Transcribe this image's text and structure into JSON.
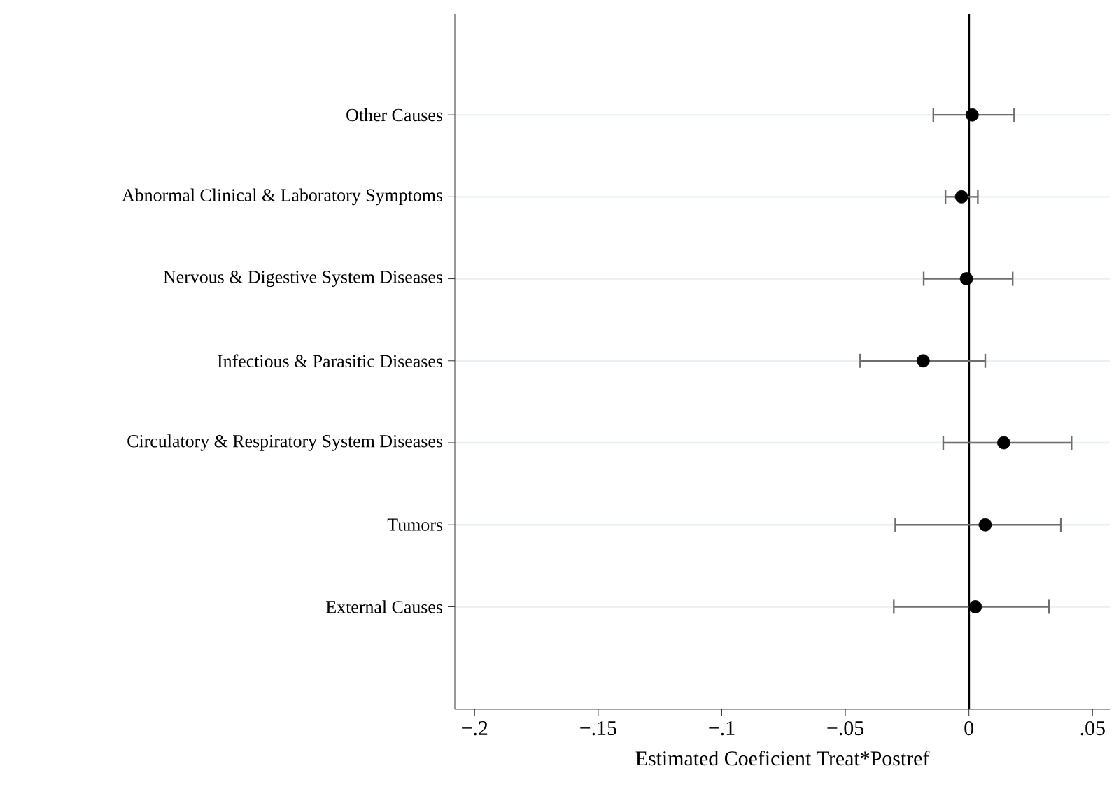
{
  "chart_data": {
    "type": "scatter",
    "orientation": "horizontal",
    "xlabel": "Estimated Coeficient Treat*Postref",
    "categories": [
      "Other Causes",
      "Abnormal Clinical & Laboratory Symptoms",
      "Nervous & Digestive System Diseases",
      "Infectious & Parasitic Diseases",
      "Circulatory & Respiratory System Diseases",
      "Tumors",
      "External Causes"
    ],
    "series": [
      {
        "color": "#000000",
        "values": [
          0.0013,
          -0.003,
          -0.001,
          -0.0185,
          0.0141,
          0.0066,
          0.0026
        ],
        "errors": [
          [
            -0.0144,
            0.0183
          ],
          [
            -0.0095,
            0.0036
          ],
          [
            -0.0183,
            0.0177
          ],
          [
            -0.044,
            0.0066
          ],
          [
            -0.0104,
            0.0415
          ],
          [
            -0.0298,
            0.0372
          ],
          [
            -0.0304,
            0.0324
          ]
        ]
      }
    ],
    "xlim": [
      -0.208,
      0.057
    ],
    "xticks": [
      {
        "value": -0.2,
        "label": "−.2"
      },
      {
        "value": -0.15,
        "label": "−.15"
      },
      {
        "value": -0.1,
        "label": "−.1"
      },
      {
        "value": -0.05,
        "label": "−.05"
      },
      0,
      {
        "value": 0.05,
        "label": ".05"
      }
    ],
    "ref_lines": [
      {
        "axis": "x",
        "value": 0,
        "color": "#000000"
      }
    ],
    "grid": "y",
    "marker": "circle"
  }
}
